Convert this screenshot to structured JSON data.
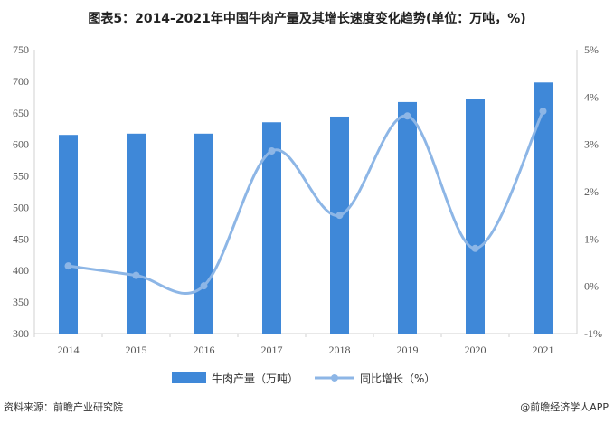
{
  "chart_data": {
    "type": "bar",
    "title": "图表5：2014-2021年中国牛肉产量及其增长速度变化趋势(单位：万吨，%)",
    "categories": [
      "2014",
      "2015",
      "2016",
      "2017",
      "2018",
      "2019",
      "2020",
      "2021"
    ],
    "series": [
      {
        "name": "牛肉产量（万吨）",
        "type": "bar",
        "axis": "left",
        "values": [
          615,
          617,
          617,
          635,
          644,
          667,
          672,
          698
        ]
      },
      {
        "name": "同比增长（%）",
        "type": "line",
        "axis": "right",
        "smooth": true,
        "values": [
          0.43,
          0.23,
          0.01,
          2.86,
          1.5,
          3.6,
          0.8,
          3.7
        ]
      }
    ],
    "y_left": {
      "min": 300,
      "max": 750,
      "ticks": [
        "300",
        "350",
        "400",
        "450",
        "500",
        "550",
        "600",
        "650",
        "700",
        "750"
      ]
    },
    "y_right": {
      "min": -1,
      "max": 5,
      "ticks": [
        "-1%",
        "0%",
        "1%",
        "2%",
        "3%",
        "4%",
        "5%"
      ]
    },
    "colors": {
      "bar": "#3f88d8",
      "line": "#8db6e6"
    },
    "legend_position": "bottom",
    "grid": false
  },
  "footer": {
    "source": "资料来源：前瞻产业研究院",
    "brand": "@前瞻经济学人APP"
  }
}
